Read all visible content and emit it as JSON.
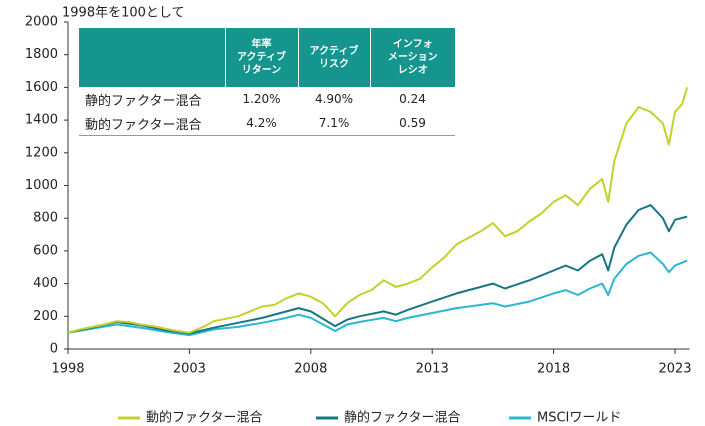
{
  "chart_data": {
    "type": "line",
    "ylabel": "1998年を100として",
    "xlim": [
      1998,
      2023.6
    ],
    "xticks": [
      1998,
      2003,
      2008,
      2013,
      2018,
      2023
    ],
    "ylim": [
      0,
      2000
    ],
    "yticks": [
      0,
      200,
      400,
      600,
      800,
      1000,
      1200,
      1400,
      1600,
      1800,
      2000
    ],
    "series": [
      {
        "name": "動的ファクター混合",
        "color": "#c3d12c",
        "x": [
          1998,
          1998.5,
          1999,
          1999.5,
          2000,
          2000.5,
          2001,
          2001.5,
          2002,
          2002.5,
          2003,
          2003.5,
          2004,
          2004.5,
          2005,
          2005.5,
          2006,
          2006.5,
          2007,
          2007.5,
          2008,
          2008.5,
          2009,
          2009.5,
          2010,
          2010.5,
          2011,
          2011.5,
          2012,
          2012.5,
          2013,
          2013.5,
          2014,
          2014.5,
          2015,
          2015.5,
          2016,
          2016.5,
          2017,
          2017.5,
          2018,
          2018.5,
          2019,
          2019.5,
          2020,
          2020.25,
          2020.5,
          2021,
          2021.5,
          2022,
          2022.5,
          2022.75,
          2023,
          2023.3,
          2023.5
        ],
        "values": [
          100,
          120,
          135,
          150,
          170,
          165,
          150,
          140,
          125,
          110,
          100,
          130,
          170,
          185,
          200,
          230,
          260,
          270,
          310,
          340,
          320,
          280,
          200,
          280,
          330,
          360,
          420,
          380,
          400,
          430,
          500,
          560,
          640,
          680,
          720,
          770,
          690,
          720,
          780,
          830,
          900,
          940,
          880,
          980,
          1040,
          900,
          1150,
          1380,
          1480,
          1450,
          1380,
          1250,
          1450,
          1500,
          1600
        ]
      },
      {
        "name": "静的ファクター混合",
        "color": "#177682",
        "x": [
          1998,
          1999,
          2000,
          2001,
          2002,
          2003,
          2004,
          2005,
          2006,
          2007,
          2007.5,
          2008,
          2009,
          2009.5,
          2010,
          2011,
          2011.5,
          2012,
          2013,
          2014,
          2015,
          2015.5,
          2016,
          2017,
          2018,
          2018.5,
          2019,
          2019.5,
          2020,
          2020.25,
          2020.5,
          2021,
          2021.5,
          2022,
          2022.5,
          2022.75,
          2023,
          2023.5
        ],
        "values": [
          100,
          130,
          165,
          145,
          115,
          95,
          130,
          160,
          190,
          230,
          250,
          230,
          140,
          180,
          200,
          230,
          210,
          240,
          290,
          340,
          380,
          400,
          370,
          420,
          480,
          510,
          480,
          540,
          580,
          480,
          620,
          760,
          850,
          880,
          800,
          720,
          790,
          810
        ]
      },
      {
        "name": "MSCIワールド",
        "color": "#2bb7d0",
        "x": [
          1998,
          1999,
          2000,
          2001,
          2002,
          2003,
          2004,
          2005,
          2006,
          2007,
          2007.5,
          2008,
          2009,
          2009.5,
          2010,
          2011,
          2011.5,
          2012,
          2013,
          2014,
          2015,
          2015.5,
          2016,
          2017,
          2018,
          2018.5,
          2019,
          2019.5,
          2020,
          2020.25,
          2020.5,
          2021,
          2021.5,
          2022,
          2022.5,
          2022.75,
          2023,
          2023.5
        ],
        "values": [
          100,
          125,
          150,
          130,
          105,
          85,
          120,
          135,
          160,
          190,
          210,
          190,
          110,
          150,
          165,
          190,
          170,
          190,
          220,
          250,
          270,
          280,
          260,
          290,
          340,
          360,
          330,
          370,
          400,
          330,
          430,
          520,
          570,
          590,
          520,
          470,
          510,
          540
        ]
      }
    ],
    "table": {
      "header": [
        "",
        "年率\nアクティブ\nリターン",
        "アクティブ\nリスク",
        "インフォ\nメーション\nレシオ"
      ],
      "rows": [
        [
          "静的ファクター混合",
          "1.20%",
          "4.90%",
          "0.24"
        ],
        [
          "動的ファクター混合",
          "4.2%",
          "7.1%",
          "0.59"
        ]
      ]
    }
  }
}
